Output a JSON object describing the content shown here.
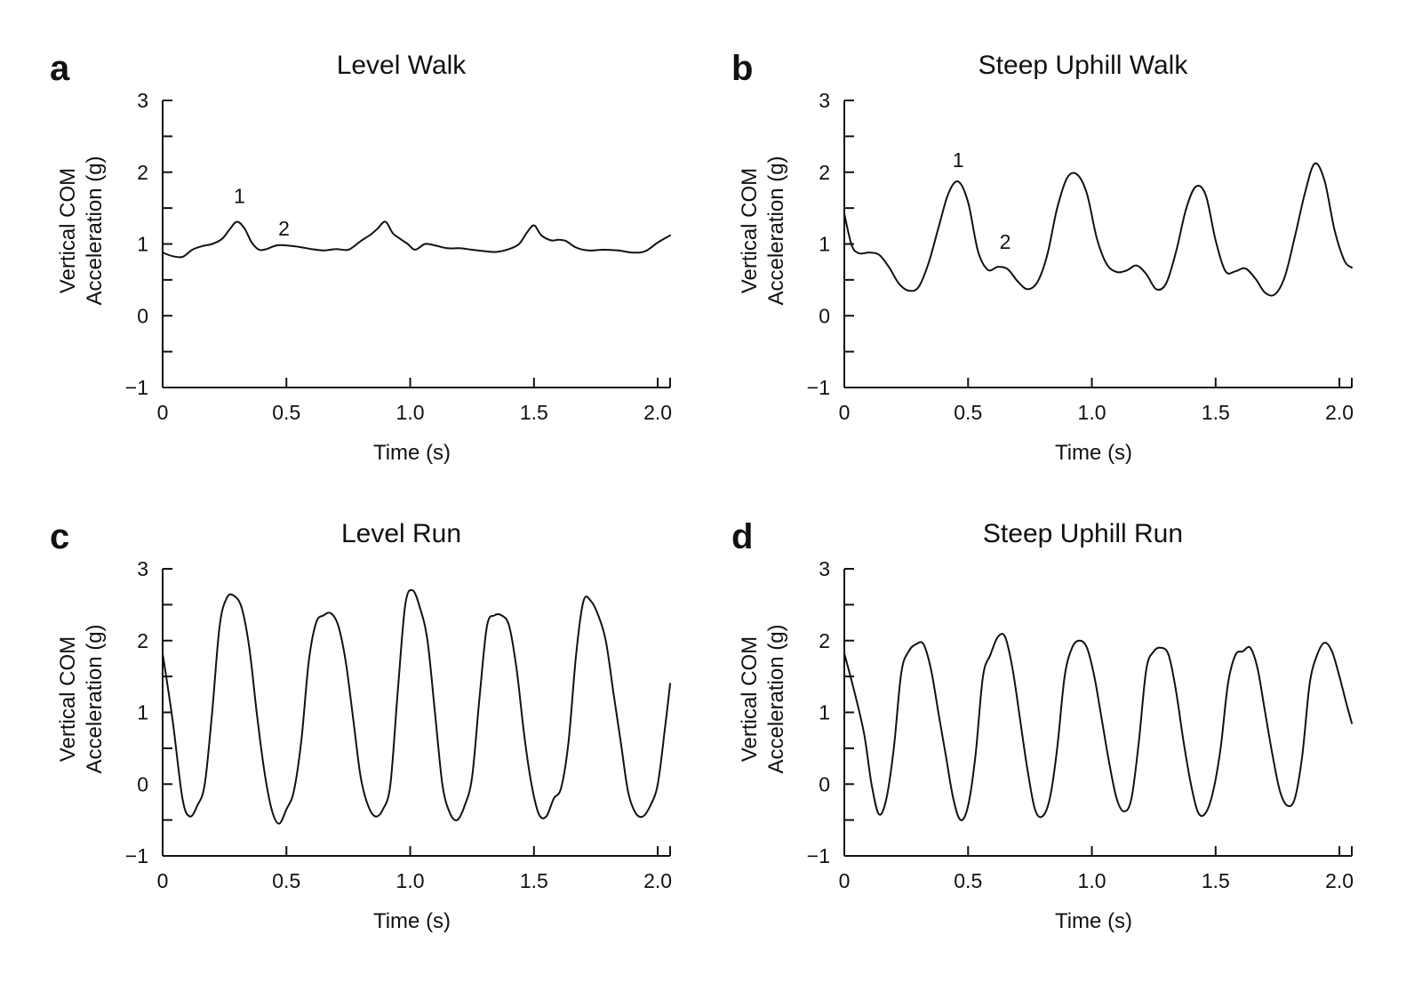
{
  "chart_data": [
    {
      "type": "line",
      "panel": "a",
      "title": "Level Walk",
      "xlabel": "Time (s)",
      "ylabel": [
        "Vertical COM",
        "Acceleration (g)"
      ],
      "xlim": [
        0,
        2.05
      ],
      "ylim": [
        -1,
        3
      ],
      "xticks": [
        0,
        0.5,
        1.0,
        1.5,
        2.0
      ],
      "xtick_labels": [
        "0",
        "0.5",
        "1.0",
        "1.5",
        "2.0"
      ],
      "yticks": [
        3,
        2,
        1,
        0,
        -1
      ],
      "ytick_labels": [
        "3",
        "2",
        "1",
        "0",
        "−1"
      ],
      "annotations": [
        {
          "text": "1",
          "x": 0.31,
          "y": 1.57
        },
        {
          "text": "2",
          "x": 0.49,
          "y": 1.12
        }
      ],
      "series": [
        {
          "x": [
            0,
            0.04,
            0.08,
            0.12,
            0.16,
            0.2,
            0.24,
            0.27,
            0.3,
            0.33,
            0.36,
            0.39,
            0.42,
            0.46,
            0.5,
            0.55,
            0.6,
            0.65,
            0.7,
            0.75,
            0.8,
            0.84,
            0.87,
            0.9,
            0.93,
            0.96,
            0.99,
            1.02,
            1.06,
            1.1,
            1.15,
            1.2,
            1.25,
            1.3,
            1.35,
            1.4,
            1.44,
            1.47,
            1.5,
            1.53,
            1.57,
            1.6,
            1.63,
            1.67,
            1.72,
            1.78,
            1.84,
            1.9,
            1.95,
            2.0,
            2.05
          ],
          "y": [
            0.88,
            0.83,
            0.82,
            0.92,
            0.97,
            1.0,
            1.07,
            1.2,
            1.31,
            1.22,
            1.02,
            0.92,
            0.93,
            0.98,
            0.98,
            0.96,
            0.93,
            0.91,
            0.93,
            0.92,
            1.04,
            1.13,
            1.22,
            1.31,
            1.15,
            1.07,
            1.0,
            0.92,
            1.0,
            0.98,
            0.94,
            0.94,
            0.92,
            0.9,
            0.89,
            0.93,
            1.0,
            1.15,
            1.26,
            1.12,
            1.05,
            1.06,
            1.04,
            0.95,
            0.91,
            0.92,
            0.91,
            0.88,
            0.9,
            1.02,
            1.12
          ]
        }
      ]
    },
    {
      "type": "line",
      "panel": "b",
      "title": "Steep Uphill Walk",
      "xlabel": "Time (s)",
      "ylabel": [
        "Vertical COM",
        "Acceleration (g)"
      ],
      "xlim": [
        0,
        2.05
      ],
      "ylim": [
        -1,
        3
      ],
      "xticks": [
        0,
        0.5,
        1.0,
        1.5,
        2.0
      ],
      "xtick_labels": [
        "0",
        "0.5",
        "1.0",
        "1.5",
        "2.0"
      ],
      "yticks": [
        3,
        2,
        1,
        0,
        -1
      ],
      "ytick_labels": [
        "3",
        "2",
        "1",
        "0",
        "−1"
      ],
      "annotations": [
        {
          "text": "1",
          "x": 0.46,
          "y": 2.07
        },
        {
          "text": "2",
          "x": 0.65,
          "y": 0.93
        }
      ],
      "series": [
        {
          "x": [
            0,
            0.03,
            0.06,
            0.1,
            0.14,
            0.18,
            0.22,
            0.26,
            0.3,
            0.34,
            0.38,
            0.42,
            0.46,
            0.5,
            0.54,
            0.58,
            0.62,
            0.66,
            0.7,
            0.74,
            0.78,
            0.82,
            0.86,
            0.9,
            0.94,
            0.98,
            1.02,
            1.06,
            1.1,
            1.14,
            1.18,
            1.22,
            1.26,
            1.3,
            1.34,
            1.38,
            1.42,
            1.46,
            1.5,
            1.54,
            1.58,
            1.62,
            1.66,
            1.7,
            1.74,
            1.78,
            1.82,
            1.86,
            1.9,
            1.94,
            1.98,
            2.02,
            2.05
          ],
          "y": [
            1.42,
            0.98,
            0.87,
            0.88,
            0.85,
            0.68,
            0.45,
            0.35,
            0.4,
            0.73,
            1.22,
            1.7,
            1.87,
            1.58,
            0.9,
            0.64,
            0.68,
            0.65,
            0.48,
            0.37,
            0.47,
            0.85,
            1.5,
            1.92,
            1.97,
            1.7,
            1.08,
            0.72,
            0.61,
            0.63,
            0.7,
            0.58,
            0.37,
            0.45,
            0.89,
            1.48,
            1.8,
            1.68,
            1.05,
            0.62,
            0.62,
            0.66,
            0.52,
            0.32,
            0.3,
            0.55,
            1.1,
            1.7,
            2.12,
            1.88,
            1.2,
            0.77,
            0.67
          ]
        }
      ]
    },
    {
      "type": "line",
      "panel": "c",
      "title": "Level Run",
      "xlabel": "Time (s)",
      "ylabel": [
        "Vertical COM",
        "Acceleration (g)"
      ],
      "xlim": [
        0,
        2.05
      ],
      "ylim": [
        -1,
        3
      ],
      "xticks": [
        0,
        0.5,
        1.0,
        1.5,
        2.0
      ],
      "xtick_labels": [
        "0",
        "0.5",
        "1.0",
        "1.5",
        "2.0"
      ],
      "yticks": [
        3,
        2,
        1,
        0,
        -1
      ],
      "ytick_labels": [
        "3",
        "2",
        "1",
        "0",
        "−1"
      ],
      "annotations": [],
      "series": [
        {
          "x": [
            0,
            0.04,
            0.08,
            0.11,
            0.14,
            0.17,
            0.2,
            0.23,
            0.26,
            0.29,
            0.32,
            0.35,
            0.38,
            0.41,
            0.44,
            0.47,
            0.5,
            0.53,
            0.56,
            0.59,
            0.62,
            0.65,
            0.68,
            0.71,
            0.74,
            0.77,
            0.8,
            0.83,
            0.86,
            0.89,
            0.92,
            0.95,
            0.98,
            1.01,
            1.04,
            1.07,
            1.1,
            1.13,
            1.16,
            1.19,
            1.22,
            1.25,
            1.28,
            1.31,
            1.34,
            1.37,
            1.4,
            1.43,
            1.46,
            1.49,
            1.52,
            1.55,
            1.58,
            1.61,
            1.64,
            1.67,
            1.7,
            1.73,
            1.76,
            1.79,
            1.82,
            1.85,
            1.88,
            1.91,
            1.94,
            1.97,
            2.0,
            2.03,
            2.05
          ],
          "y": [
            1.82,
            0.9,
            -0.2,
            -0.45,
            -0.3,
            0.0,
            1.0,
            2.2,
            2.6,
            2.62,
            2.45,
            1.9,
            1.0,
            0.2,
            -0.35,
            -0.55,
            -0.35,
            -0.1,
            0.6,
            1.7,
            2.25,
            2.35,
            2.38,
            2.2,
            1.7,
            0.9,
            0.1,
            -0.3,
            -0.45,
            -0.35,
            0.0,
            1.3,
            2.5,
            2.7,
            2.45,
            2.0,
            1.0,
            0.0,
            -0.4,
            -0.5,
            -0.3,
            0.1,
            1.2,
            2.2,
            2.35,
            2.35,
            2.2,
            1.6,
            0.7,
            0.0,
            -0.42,
            -0.45,
            -0.2,
            -0.05,
            0.6,
            1.8,
            2.55,
            2.55,
            2.35,
            2.0,
            1.3,
            0.6,
            -0.1,
            -0.4,
            -0.45,
            -0.3,
            0.0,
            0.8,
            1.4
          ]
        }
      ]
    },
    {
      "type": "line",
      "panel": "d",
      "title": "Steep Uphill Run",
      "xlabel": "Time (s)",
      "ylabel": [
        "Vertical COM",
        "Acceleration (g)"
      ],
      "xlim": [
        0,
        2.05
      ],
      "ylim": [
        -1,
        3
      ],
      "xticks": [
        0,
        0.5,
        1.0,
        1.5,
        2.0
      ],
      "xtick_labels": [
        "0",
        "0.5",
        "1.0",
        "1.5",
        "2.0"
      ],
      "yticks": [
        3,
        2,
        1,
        0,
        -1
      ],
      "ytick_labels": [
        "3",
        "2",
        "1",
        "0",
        "−1"
      ],
      "annotations": [],
      "series": [
        {
          "x": [
            0,
            0.04,
            0.08,
            0.11,
            0.14,
            0.17,
            0.2,
            0.23,
            0.26,
            0.29,
            0.32,
            0.35,
            0.38,
            0.41,
            0.44,
            0.47,
            0.5,
            0.53,
            0.56,
            0.59,
            0.62,
            0.65,
            0.68,
            0.71,
            0.74,
            0.77,
            0.8,
            0.83,
            0.86,
            0.89,
            0.92,
            0.95,
            0.98,
            1.01,
            1.04,
            1.07,
            1.1,
            1.13,
            1.16,
            1.19,
            1.22,
            1.25,
            1.28,
            1.31,
            1.34,
            1.37,
            1.4,
            1.43,
            1.46,
            1.49,
            1.52,
            1.55,
            1.58,
            1.61,
            1.64,
            1.67,
            1.7,
            1.73,
            1.76,
            1.79,
            1.82,
            1.85,
            1.88,
            1.91,
            1.94,
            1.97,
            2.0,
            2.03,
            2.05
          ],
          "y": [
            1.82,
            1.3,
            0.7,
            0.0,
            -0.42,
            -0.2,
            0.5,
            1.55,
            1.85,
            1.95,
            1.95,
            1.6,
            1.0,
            0.4,
            -0.2,
            -0.5,
            -0.3,
            0.4,
            1.5,
            1.8,
            2.05,
            2.05,
            1.6,
            0.9,
            0.2,
            -0.35,
            -0.45,
            -0.2,
            0.5,
            1.5,
            1.9,
            2.0,
            1.9,
            1.5,
            0.9,
            0.3,
            -0.2,
            -0.38,
            -0.2,
            0.6,
            1.6,
            1.85,
            1.9,
            1.8,
            1.3,
            0.6,
            0.0,
            -0.4,
            -0.4,
            -0.1,
            0.5,
            1.4,
            1.8,
            1.85,
            1.9,
            1.6,
            1.0,
            0.4,
            -0.1,
            -0.3,
            -0.2,
            0.4,
            1.4,
            1.8,
            1.97,
            1.85,
            1.5,
            1.1,
            0.85
          ]
        }
      ]
    }
  ]
}
